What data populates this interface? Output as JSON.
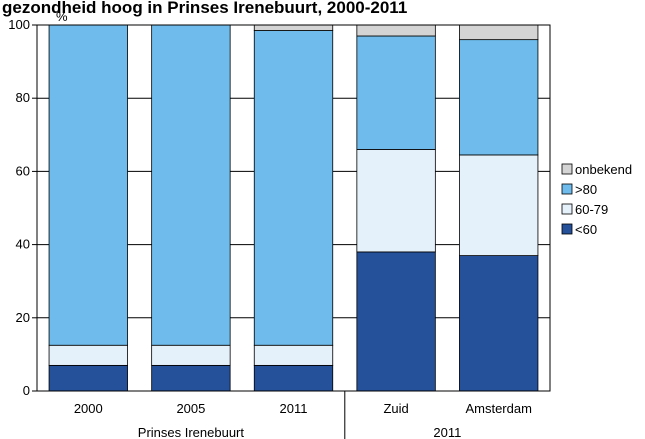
{
  "chart_data": {
    "type": "bar",
    "stacked": true,
    "title": "gezondheid hoog in Prinses Irenebuurt, 2000-2011",
    "ylabel": "%",
    "ylim": [
      0,
      100
    ],
    "yticks": [
      0,
      20,
      40,
      60,
      80,
      100
    ],
    "grid": true,
    "legend_position": "right",
    "categories": [
      "2000",
      "2005",
      "2011",
      "Zuid",
      "Amsterdam"
    ],
    "groups": [
      {
        "label": "Prinses Irenebuurt",
        "categories": [
          "2000",
          "2005",
          "2011"
        ]
      },
      {
        "label": "2011",
        "categories": [
          "Zuid",
          "Amsterdam"
        ]
      }
    ],
    "series": [
      {
        "name": "<60",
        "color": "#25509a",
        "values": [
          7,
          7,
          7,
          38,
          37
        ]
      },
      {
        "name": "60-79",
        "color": "#e4f0fa",
        "values": [
          5.5,
          5.5,
          5.5,
          28,
          27.5
        ]
      },
      {
        "name": ">80",
        "color": "#6fbcec",
        "values": [
          87.5,
          87.5,
          86,
          31,
          31.5
        ]
      },
      {
        "name": "onbekend",
        "color": "#d4d4d4",
        "values": [
          0,
          0,
          1.5,
          3,
          4
        ]
      }
    ],
    "legend_order": [
      "onbekend",
      ">80",
      "60-79",
      "<60"
    ]
  }
}
